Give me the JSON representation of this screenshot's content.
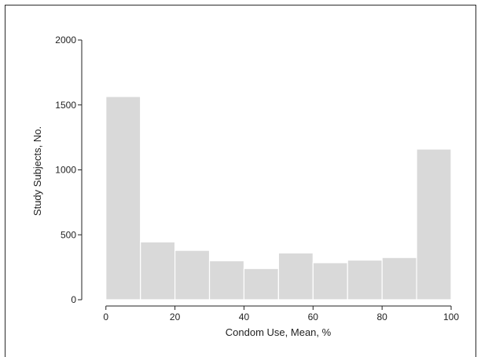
{
  "chart_data": {
    "type": "bar",
    "title": "",
    "xlabel": "Condom Use, Mean, %",
    "ylabel": "Study Subjects, No.",
    "bin_edges": [
      0,
      10,
      20,
      30,
      40,
      50,
      60,
      70,
      80,
      90,
      100
    ],
    "values": [
      1565,
      445,
      380,
      300,
      240,
      360,
      285,
      305,
      325,
      1160
    ],
    "xlim": [
      -7,
      100
    ],
    "ylim": [
      0,
      2000
    ],
    "xticks": [
      "0",
      "20",
      "40",
      "60",
      "80",
      "100"
    ],
    "yticks": [
      "0",
      "500",
      "1000",
      "1500",
      "2000"
    ],
    "bar_color": "#d9d9d9",
    "bar_edge_color": "#ffffff",
    "axis_color": "#222222",
    "grid": false
  }
}
